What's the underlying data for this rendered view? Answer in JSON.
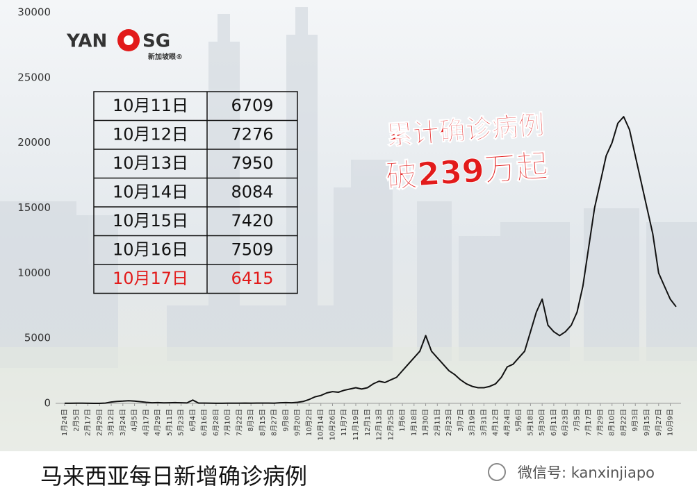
{
  "chart_data": {
    "type": "line",
    "annotations": [
      "累计确诊病例",
      "破239万起"
    ],
    "categories": [
      "1月24日",
      null,
      "2月5日",
      null,
      "2月17日",
      null,
      "2月29日",
      null,
      "3月12日",
      null,
      "3月24日",
      null,
      "4月5日",
      null,
      "4月17日",
      null,
      "4月29日",
      null,
      "5月11日",
      null,
      "5月23日",
      null,
      "6月4日",
      null,
      "6月16日",
      null,
      "6月28日",
      null,
      "7月10日",
      null,
      "7月22日",
      null,
      "8月3日",
      null,
      "8月15日",
      null,
      "8月27日",
      null,
      "9月8日",
      null,
      "9月20日",
      null,
      "10月2日",
      null,
      "10月14日",
      null,
      "10月26日",
      null,
      "11月7日",
      null,
      "11月19日",
      null,
      "12月1日",
      null,
      "12月13日",
      null,
      "12月25日",
      null,
      "1月6日",
      null,
      "1月18日",
      null,
      "1月30日",
      null,
      "2月11日",
      null,
      "2月23日",
      null,
      "3月7日",
      null,
      "3月19日",
      null,
      "3月31日",
      null,
      "4月12日",
      null,
      "4月24日",
      null,
      "5月6日",
      null,
      "5月18日",
      null,
      "5月30日",
      null,
      "6月11日",
      null,
      "6月23日",
      null,
      "7月5日",
      null,
      "7月17日",
      null,
      "7月29日",
      null,
      "8月10日",
      null,
      "8月22日",
      null,
      "9月3日",
      null,
      "9月15日",
      null,
      "9月27日",
      null,
      "10月9日",
      null
    ],
    "values": [
      4,
      7,
      12,
      8,
      3,
      2,
      1,
      20,
      100,
      150,
      170,
      200,
      170,
      130,
      80,
      50,
      60,
      40,
      50,
      60,
      50,
      30,
      250,
      20,
      20,
      10,
      5,
      5,
      10,
      15,
      15,
      20,
      15,
      20,
      20,
      20,
      10,
      50,
      60,
      50,
      80,
      150,
      300,
      500,
      600,
      800,
      900,
      850,
      1000,
      1100,
      1200,
      1100,
      1200,
      1500,
      1700,
      1600,
      1800,
      2000,
      2500,
      3000,
      3500,
      4000,
      5200,
      4000,
      3500,
      3000,
      2500,
      2200,
      1800,
      1500,
      1300,
      1200,
      1200,
      1300,
      1500,
      2000,
      2800,
      3000,
      3500,
      4000,
      5500,
      7000,
      8000,
      6000,
      5500,
      5200,
      5500,
      6000,
      7000,
      9000,
      12000,
      15000,
      17000,
      19000,
      20000,
      21500,
      22000,
      21000,
      19000,
      17000,
      15000,
      13000,
      10000,
      9000,
      8000,
      7420
    ],
    "color": "#111111",
    "ylim": [
      0,
      30000
    ],
    "yticks": [
      0,
      5000,
      10000,
      15000,
      20000,
      25000,
      30000
    ],
    "grid": false
  },
  "table": {
    "rows": [
      [
        "10月11日",
        6709
      ],
      [
        "10月12日",
        7276
      ],
      [
        "10月13日",
        7950
      ],
      [
        "10月14日",
        8084
      ],
      [
        "10月15日",
        7420
      ],
      [
        "10月16日",
        7509
      ],
      [
        "10月17日",
        6415
      ]
    ]
  },
  "logo": {
    "left": "YAN",
    "right": "SG",
    "sub": "新加坡眼®"
  },
  "caption": "马来西亚每日新增确诊病例",
  "watermark": "微信号: kanxinjiapo"
}
